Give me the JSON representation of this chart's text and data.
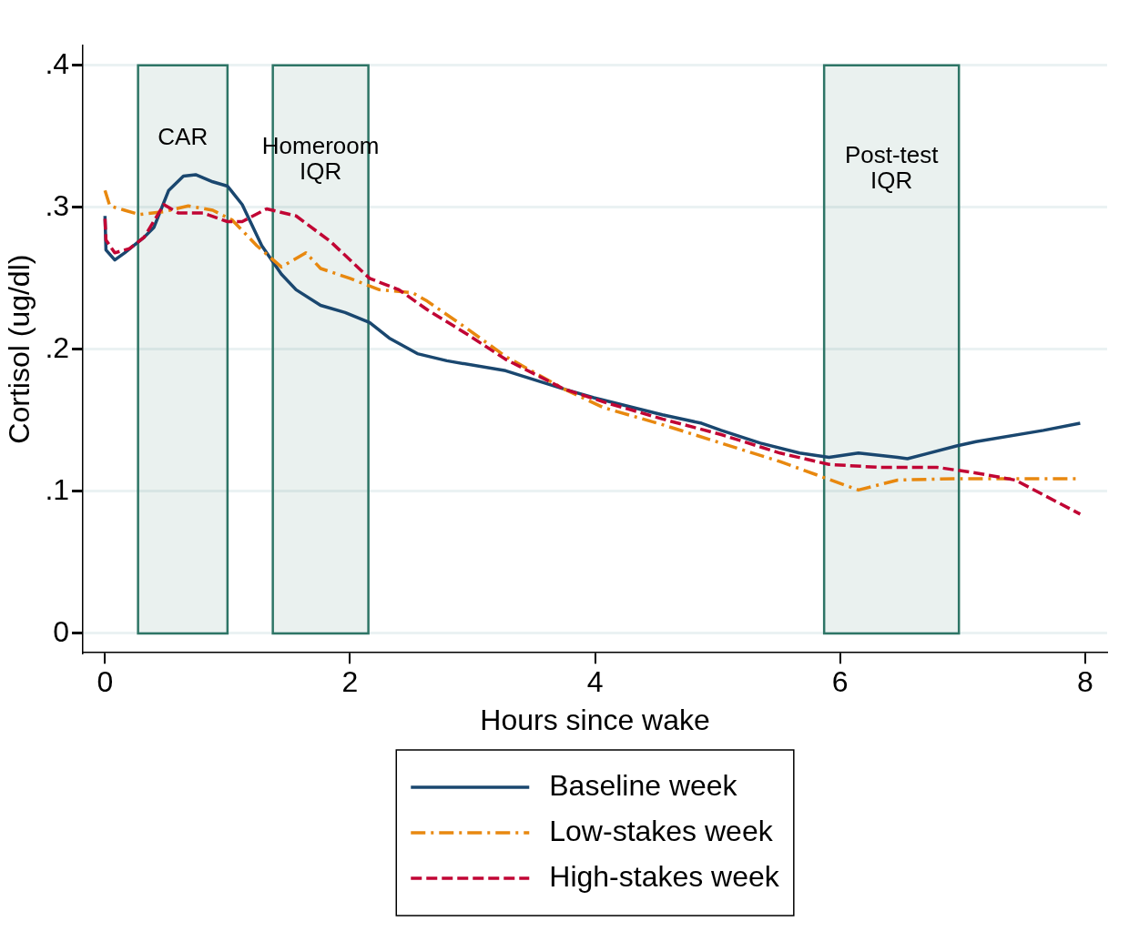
{
  "chart_data": {
    "type": "line",
    "xlabel": "Hours since wake",
    "ylabel": "Cortisol (ug/dl)",
    "xlim": [
      -0.18,
      8.18
    ],
    "xticks": [
      0,
      2,
      4,
      6,
      8
    ],
    "ylim": [
      -0.0136,
      0.414
    ],
    "yticks": [
      0,
      {
        "value": 0.1,
        "label": ".1"
      },
      {
        "value": 0.2,
        "label": ".2"
      },
      {
        "value": 0.3,
        "label": ".3"
      },
      {
        "value": 0.4,
        "label": ".4"
      }
    ],
    "grid": "y",
    "legend": "bottom",
    "marker": "none",
    "bands": [
      {
        "axis": "x",
        "from": 0.27,
        "to": 1.0,
        "label": "CAR",
        "color": "#2e7566"
      },
      {
        "axis": "x",
        "from": 1.37,
        "to": 2.15,
        "label": "Homeroom\nIQR",
        "color": "#2e7566"
      },
      {
        "axis": "x",
        "from": 5.87,
        "to": 6.97,
        "label": "Post-test\nIQR",
        "color": "#2e7566"
      }
    ],
    "series": [
      {
        "name": "Baseline week",
        "color": "#1a476f",
        "line_style": "solid",
        "x": [
          0,
          0.008,
          0.08,
          0.16,
          0.32,
          0.4,
          0.52,
          0.64,
          0.74,
          0.88,
          1.0,
          1.12,
          1.28,
          1.44,
          1.56,
          1.76,
          1.96,
          2.16,
          2.32,
          2.55,
          2.79,
          3.27,
          3.75,
          3.99,
          4.55,
          4.87,
          5.03,
          5.35,
          5.67,
          5.91,
          6.15,
          6.47,
          6.55,
          6.95,
          7.11,
          7.66,
          7.96
        ],
        "values": [
          0.294,
          0.27,
          0.263,
          0.268,
          0.279,
          0.286,
          0.312,
          0.322,
          0.323,
          0.318,
          0.315,
          0.302,
          0.273,
          0.253,
          0.242,
          0.231,
          0.226,
          0.219,
          0.208,
          0.197,
          0.192,
          0.185,
          0.172,
          0.166,
          0.154,
          0.148,
          0.143,
          0.134,
          0.127,
          0.124,
          0.127,
          0.124,
          0.123,
          0.132,
          0.135,
          0.143,
          0.148
        ]
      },
      {
        "name": "Low-stakes week",
        "color": "#e8880f",
        "line_style": "dashdot",
        "x": [
          0,
          0.04,
          0.16,
          0.28,
          0.48,
          0.68,
          0.88,
          1.04,
          1.24,
          1.44,
          1.64,
          1.76,
          2.0,
          2.24,
          2.51,
          2.63,
          2.95,
          3.27,
          3.75,
          4.07,
          4.55,
          5.03,
          5.51,
          5.83,
          6.15,
          6.47,
          6.95,
          7.27,
          7.96
        ],
        "values": [
          0.312,
          0.301,
          0.298,
          0.295,
          0.297,
          0.301,
          0.298,
          0.291,
          0.273,
          0.258,
          0.268,
          0.257,
          0.25,
          0.242,
          0.24,
          0.234,
          0.215,
          0.195,
          0.172,
          0.159,
          0.147,
          0.134,
          0.121,
          0.111,
          0.101,
          0.108,
          0.109,
          0.109,
          0.109
        ]
      },
      {
        "name": "High-stakes week",
        "color": "#c10534",
        "line_style": "dashed",
        "x": [
          0,
          0.008,
          0.08,
          0.2,
          0.32,
          0.48,
          0.6,
          0.8,
          1.0,
          1.12,
          1.32,
          1.56,
          1.84,
          2.16,
          2.4,
          2.63,
          2.95,
          3.27,
          3.75,
          4.07,
          4.55,
          5.03,
          5.51,
          5.91,
          6.31,
          6.79,
          7.11,
          7.43,
          7.96
        ],
        "values": [
          0.292,
          0.277,
          0.268,
          0.271,
          0.279,
          0.302,
          0.296,
          0.296,
          0.29,
          0.29,
          0.299,
          0.294,
          0.276,
          0.25,
          0.242,
          0.228,
          0.211,
          0.193,
          0.172,
          0.163,
          0.151,
          0.14,
          0.127,
          0.119,
          0.117,
          0.117,
          0.113,
          0.108,
          0.084
        ]
      }
    ]
  }
}
